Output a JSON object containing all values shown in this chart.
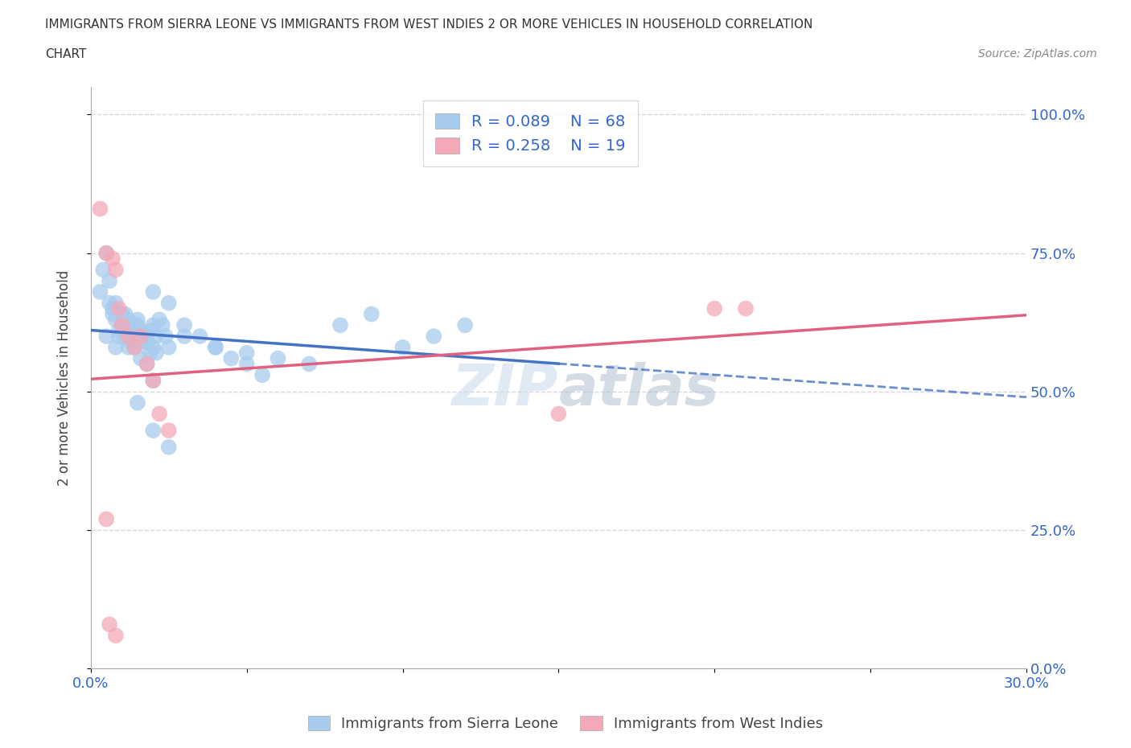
{
  "title_line1": "IMMIGRANTS FROM SIERRA LEONE VS IMMIGRANTS FROM WEST INDIES 2 OR MORE VEHICLES IN HOUSEHOLD CORRELATION",
  "title_line2": "CHART",
  "source": "Source: ZipAtlas.com",
  "watermark": "ZIPAtlas",
  "ylabel": "2 or more Vehicles in Household",
  "xlim": [
    0.0,
    0.3
  ],
  "ylim": [
    0.0,
    1.05
  ],
  "r_sierra": 0.089,
  "n_sierra": 68,
  "r_westindies": 0.258,
  "n_westindies": 19,
  "legend_label_sierra": "Immigrants from Sierra Leone",
  "legend_label_westindies": "Immigrants from West Indies",
  "color_sierra": "#A8CCEE",
  "color_westindies": "#F4A8B8",
  "line_color_sierra": "#4472C4",
  "line_color_westindies": "#E06080",
  "sl_x": [
    0.003,
    0.004,
    0.005,
    0.006,
    0.007,
    0.008,
    0.009,
    0.01,
    0.011,
    0.012,
    0.013,
    0.014,
    0.015,
    0.016,
    0.017,
    0.018,
    0.019,
    0.02,
    0.021,
    0.022,
    0.023,
    0.024,
    0.025,
    0.005,
    0.007,
    0.008,
    0.009,
    0.01,
    0.011,
    0.012,
    0.013,
    0.014,
    0.015,
    0.016,
    0.017,
    0.018,
    0.019,
    0.02,
    0.021,
    0.006,
    0.008,
    0.01,
    0.012,
    0.014,
    0.016,
    0.018,
    0.02,
    0.03,
    0.04,
    0.05,
    0.06,
    0.07,
    0.08,
    0.09,
    0.1,
    0.11,
    0.12,
    0.02,
    0.025,
    0.03,
    0.035,
    0.04,
    0.045,
    0.05,
    0.055,
    0.015,
    0.02,
    0.025
  ],
  "sl_y": [
    0.68,
    0.72,
    0.75,
    0.7,
    0.65,
    0.63,
    0.6,
    0.62,
    0.6,
    0.58,
    0.62,
    0.6,
    0.63,
    0.61,
    0.6,
    0.59,
    0.57,
    0.62,
    0.6,
    0.63,
    0.62,
    0.6,
    0.58,
    0.6,
    0.64,
    0.58,
    0.61,
    0.62,
    0.64,
    0.6,
    0.59,
    0.58,
    0.62,
    0.6,
    0.59,
    0.6,
    0.61,
    0.58,
    0.57,
    0.66,
    0.66,
    0.64,
    0.63,
    0.58,
    0.56,
    0.55,
    0.52,
    0.6,
    0.58,
    0.57,
    0.56,
    0.55,
    0.62,
    0.64,
    0.58,
    0.6,
    0.62,
    0.68,
    0.66,
    0.62,
    0.6,
    0.58,
    0.56,
    0.55,
    0.53,
    0.48,
    0.43,
    0.4
  ],
  "wi_x": [
    0.003,
    0.005,
    0.007,
    0.008,
    0.009,
    0.01,
    0.012,
    0.014,
    0.016,
    0.018,
    0.02,
    0.022,
    0.025,
    0.15,
    0.2,
    0.21,
    0.005,
    0.008,
    0.006
  ],
  "wi_y": [
    0.83,
    0.75,
    0.74,
    0.72,
    0.65,
    0.62,
    0.6,
    0.58,
    0.6,
    0.55,
    0.52,
    0.46,
    0.43,
    0.46,
    0.65,
    0.65,
    0.27,
    0.06,
    0.08
  ]
}
